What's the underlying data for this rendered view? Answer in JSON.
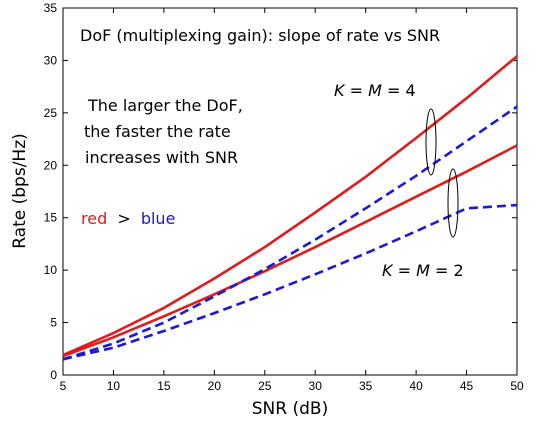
{
  "chart_data": {
    "type": "line",
    "xlabel": "SNR (dB)",
    "ylabel": "Rate (bps/Hz)",
    "xlim": [
      5,
      50
    ],
    "ylim": [
      0,
      35
    ],
    "xticks": [
      5,
      10,
      15,
      20,
      25,
      30,
      35,
      40,
      45,
      50
    ],
    "yticks": [
      0,
      5,
      10,
      15,
      20,
      25,
      30,
      35
    ],
    "grid": false,
    "series": [
      {
        "color": "#e01b1b",
        "dash": "solid",
        "x": [
          5,
          10,
          15,
          20,
          25,
          30,
          35,
          40,
          45,
          50
        ],
        "y": [
          1.9,
          4.0,
          6.4,
          9.2,
          12.2,
          15.5,
          18.9,
          22.6,
          26.4,
          30.4
        ]
      },
      {
        "color": "#e01b1b",
        "dash": "solid",
        "x": [
          5,
          10,
          15,
          20,
          25,
          30,
          35,
          40,
          45,
          50
        ],
        "y": [
          1.8,
          3.6,
          5.6,
          7.7,
          9.9,
          12.2,
          14.6,
          17.0,
          19.4,
          21.9
        ]
      },
      {
        "color": "#1a1ad6",
        "dash": "dashed",
        "x": [
          5,
          10,
          15,
          20,
          25,
          30,
          35,
          40,
          45,
          50
        ],
        "y": [
          1.5,
          3.0,
          5.0,
          7.5,
          10.1,
          12.9,
          15.9,
          19.0,
          22.3,
          25.6
        ]
      },
      {
        "color": "#1a1ad6",
        "dash": "dashed",
        "x": [
          5,
          10,
          15,
          20,
          25,
          30,
          35,
          40,
          45,
          50
        ],
        "y": [
          1.5,
          2.6,
          4.2,
          5.9,
          7.7,
          9.6,
          11.6,
          13.7,
          15.9,
          16.2
        ]
      }
    ],
    "annotations": {
      "title": "DoF (multiplexing gain): slope of rate vs SNR",
      "text_lines": [
        "The larger the DoF,",
        "the faster the rate",
        "increases with SNR"
      ],
      "compare_red": "red",
      "compare_gt": ">",
      "compare_blue": "blue",
      "k4_K": "K",
      "k4_mid": " = ",
      "k4_M": "M",
      "k4_end": " = 4",
      "k2_K": "K",
      "k2_mid": " = ",
      "k2_M": "M",
      "k2_end": " = 2"
    }
  }
}
